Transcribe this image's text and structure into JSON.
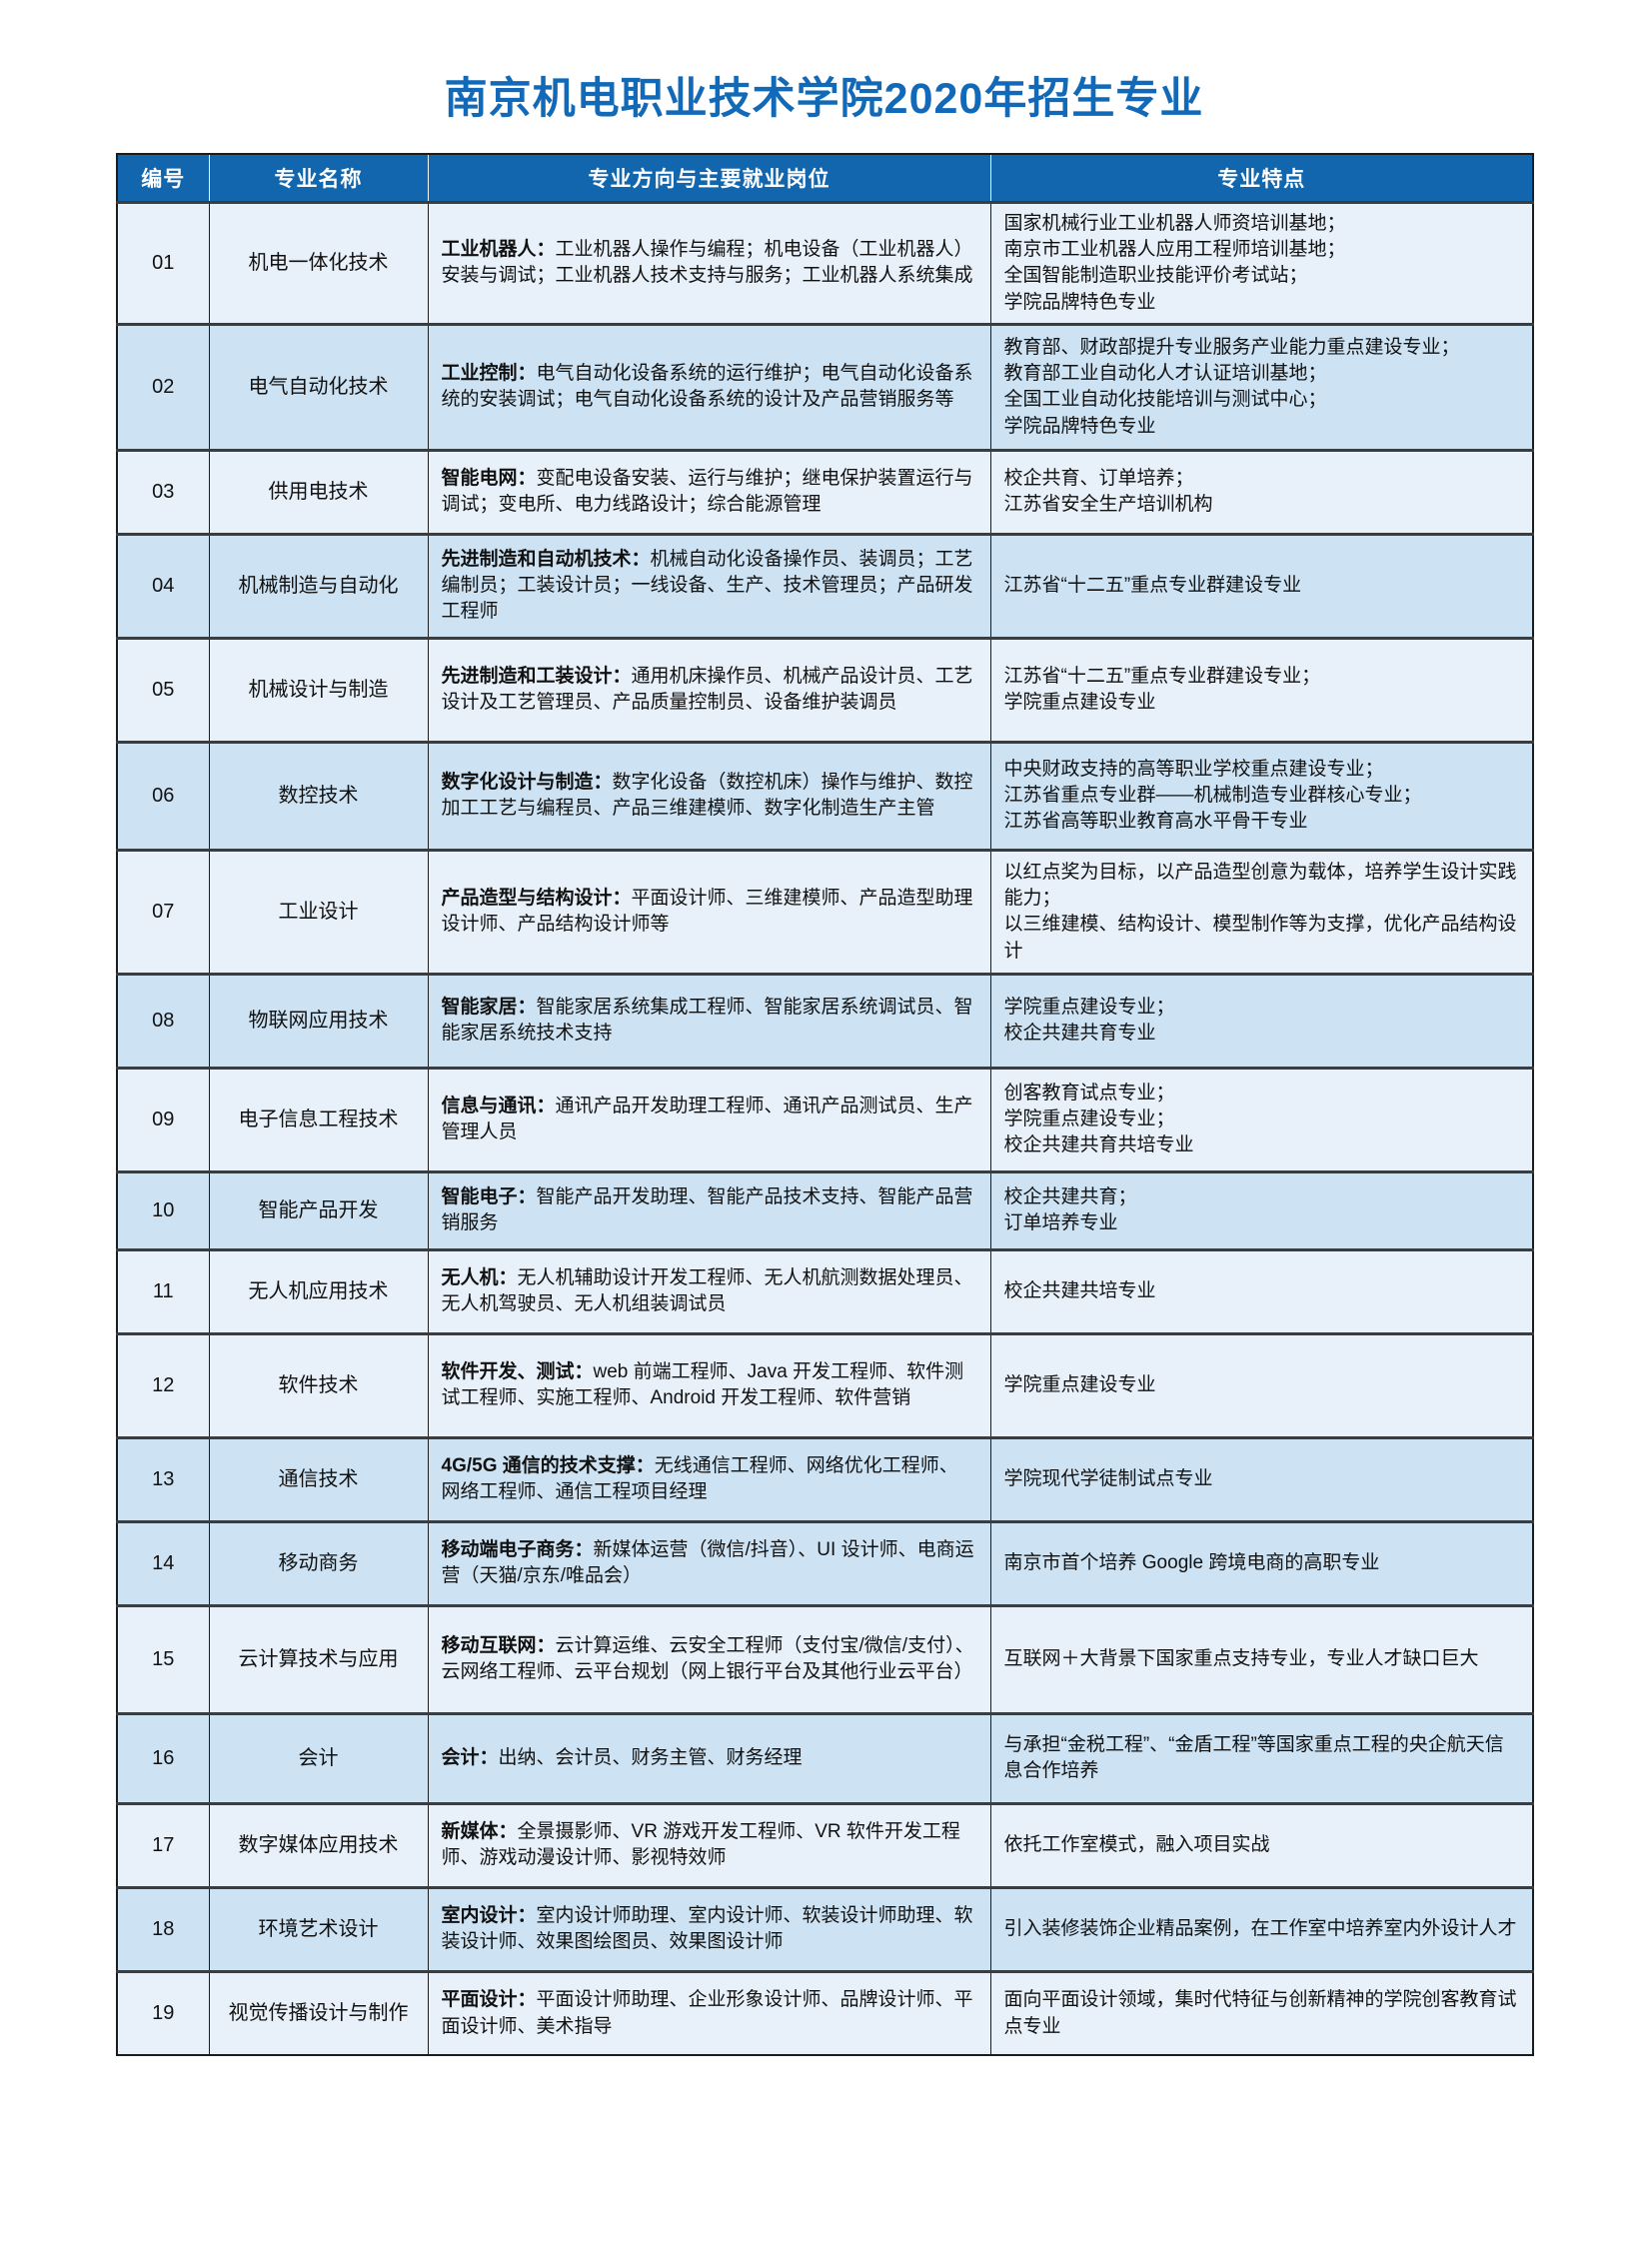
{
  "page": {
    "title": "南京机电职业技术学院2020年招生专业"
  },
  "colors": {
    "title_color": "#1269b8",
    "header_bg": "#1166ae",
    "header_text": "#ffffff",
    "row_light": "#e8f1fa",
    "row_blue": "#cde3f4"
  },
  "table": {
    "headers": [
      "编号",
      "专业名称",
      "专业方向与主要就业岗位",
      "专业特点"
    ],
    "rows": [
      {
        "no": "01",
        "major": "机电一体化技术",
        "direction_label": "工业机器人：",
        "direction_text": "工业机器人操作与编程；机电设备（工业机器人）安装与调试；工业机器人技术支持与服务；工业机器人系统集成",
        "features": [
          "国家机械行业工业机器人师资培训基地；",
          "南京市工业机器人应用工程师培训基地；",
          "全国智能制造职业技能评价考试站；",
          "学院品牌特色专业"
        ],
        "shade": "light"
      },
      {
        "no": "02",
        "major": "电气自动化技术",
        "direction_label": "工业控制：",
        "direction_text": "电气自动化设备系统的运行维护；电气自动化设备系统的安装调试；电气自动化设备系统的设计及产品营销服务等",
        "features": [
          "教育部、财政部提升专业服务产业能力重点建设专业；",
          "教育部工业自动化人才认证培训基地；",
          "全国工业自动化技能培训与测试中心；",
          "学院品牌特色专业"
        ],
        "shade": "blue"
      },
      {
        "no": "03",
        "major": "供用电技术",
        "direction_label": "智能电网：",
        "direction_text": "变配电设备安装、运行与维护；继电保护装置运行与调试；变电所、电力线路设计；综合能源管理",
        "features": [
          "校企共育、订单培养；",
          "江苏省安全生产培训机构"
        ],
        "shade": "light"
      },
      {
        "no": "04",
        "major": "机械制造与自动化",
        "direction_label": "先进制造和自动机技术：",
        "direction_text": "机械自动化设备操作员、装调员；工艺编制员；工装设计员；一线设备、生产、技术管理员；产品研发工程师",
        "features": [
          "江苏省“十二五”重点专业群建设专业"
        ],
        "shade": "blue"
      },
      {
        "no": "05",
        "major": "机械设计与制造",
        "direction_label": "先进制造和工装设计：",
        "direction_text": "通用机床操作员、机械产品设计员、工艺设计及工艺管理员、产品质量控制员、设备维护装调员",
        "features": [
          "江苏省“十二五”重点专业群建设专业；",
          "学院重点建设专业"
        ],
        "shade": "light"
      },
      {
        "no": "06",
        "major": "数控技术",
        "direction_label": "数字化设计与制造：",
        "direction_text": "数字化设备（数控机床）操作与维护、数控加工工艺与编程员、产品三维建模师、数字化制造生产主管",
        "features": [
          "中央财政支持的高等职业学校重点建设专业；",
          "江苏省重点专业群——机械制造专业群核心专业；",
          "江苏省高等职业教育高水平骨干专业"
        ],
        "shade": "blue"
      },
      {
        "no": "07",
        "major": "工业设计",
        "direction_label": "产品造型与结构设计：",
        "direction_text": "平面设计师、三维建模师、产品造型助理设计师、产品结构设计师等",
        "features": [
          "以红点奖为目标，以产品造型创意为载体，培养学生设计实践能力；",
          "以三维建模、结构设计、模型制作等为支撑，优化产品结构设计"
        ],
        "shade": "light"
      },
      {
        "no": "08",
        "major": "物联网应用技术",
        "direction_label": "智能家居：",
        "direction_text": "智能家居系统集成工程师、智能家居系统调试员、智能家居系统技术支持",
        "features": [
          "学院重点建设专业；",
          "校企共建共育专业"
        ],
        "shade": "blue"
      },
      {
        "no": "09",
        "major": "电子信息工程技术",
        "direction_label": "信息与通讯：",
        "direction_text": "通讯产品开发助理工程师、通讯产品测试员、生产管理人员",
        "features": [
          "创客教育试点专业；",
          "学院重点建设专业；",
          "校企共建共育共培专业"
        ],
        "shade": "light"
      },
      {
        "no": "10",
        "major": "智能产品开发",
        "direction_label": "智能电子：",
        "direction_text": "智能产品开发助理、智能产品技术支持、智能产品营销服务",
        "features": [
          "校企共建共育；",
          "订单培养专业"
        ],
        "shade": "blue"
      },
      {
        "no": "11",
        "major": "无人机应用技术",
        "direction_label": "无人机：",
        "direction_text": "无人机辅助设计开发工程师、无人机航测数据处理员、无人机驾驶员、无人机组装调试员",
        "features": [
          "校企共建共培专业"
        ],
        "shade": "light"
      },
      {
        "no": "12",
        "major": "软件技术",
        "direction_label": "软件开发、测试：",
        "direction_text": "web 前端工程师、Java 开发工程师、软件测试工程师、实施工程师、Android 开发工程师、软件营销",
        "features": [
          "学院重点建设专业"
        ],
        "shade": "light"
      },
      {
        "no": "13",
        "major": "通信技术",
        "direction_label": "4G/5G 通信的技术支撑：",
        "direction_text": "无线通信工程师、网络优化工程师、网络工程师、通信工程项目经理",
        "features": [
          "学院现代学徒制试点专业"
        ],
        "shade": "blue"
      },
      {
        "no": "14",
        "major": "移动商务",
        "direction_label": "移动端电子商务：",
        "direction_text": "新媒体运营（微信/抖音）、UI 设计师、电商运营（天猫/京东/唯品会）",
        "features": [
          "南京市首个培养 Google 跨境电商的高职专业"
        ],
        "shade": "blue"
      },
      {
        "no": "15",
        "major": "云计算技术与应用",
        "direction_label": "移动互联网：",
        "direction_text": "云计算运维、云安全工程师（支付宝/微信/支付）、云网络工程师、云平台规划（网上银行平台及其他行业云平台）",
        "features": [
          "互联网＋大背景下国家重点支持专业，专业人才缺口巨大"
        ],
        "shade": "light"
      },
      {
        "no": "16",
        "major": "会计",
        "direction_label": "会计：",
        "direction_text": "出纳、会计员、财务主管、财务经理",
        "features": [
          "与承担“金税工程”、“金盾工程”等国家重点工程的央企航天信息合作培养"
        ],
        "shade": "blue"
      },
      {
        "no": "17",
        "major": "数字媒体应用技术",
        "direction_label": "新媒体：",
        "direction_text": "全景摄影师、VR 游戏开发工程师、VR 软件开发工程师、游戏动漫设计师、影视特效师",
        "features": [
          "依托工作室模式，融入项目实战"
        ],
        "shade": "light"
      },
      {
        "no": "18",
        "major": "环境艺术设计",
        "direction_label": "室内设计：",
        "direction_text": "室内设计师助理、室内设计师、软装设计师助理、软装设计师、效果图绘图员、效果图设计师",
        "features": [
          "引入装修装饰企业精品案例，在工作室中培养室内外设计人才"
        ],
        "shade": "blue"
      },
      {
        "no": "19",
        "major": "视觉传播设计与制作",
        "direction_label": "平面设计：",
        "direction_text": "平面设计师助理、企业形象设计师、品牌设计师、平面设计师、美术指导",
        "features": [
          "面向平面设计领域，集时代特征与创新精神的学院创客教育试点专业"
        ],
        "shade": "light"
      }
    ]
  }
}
